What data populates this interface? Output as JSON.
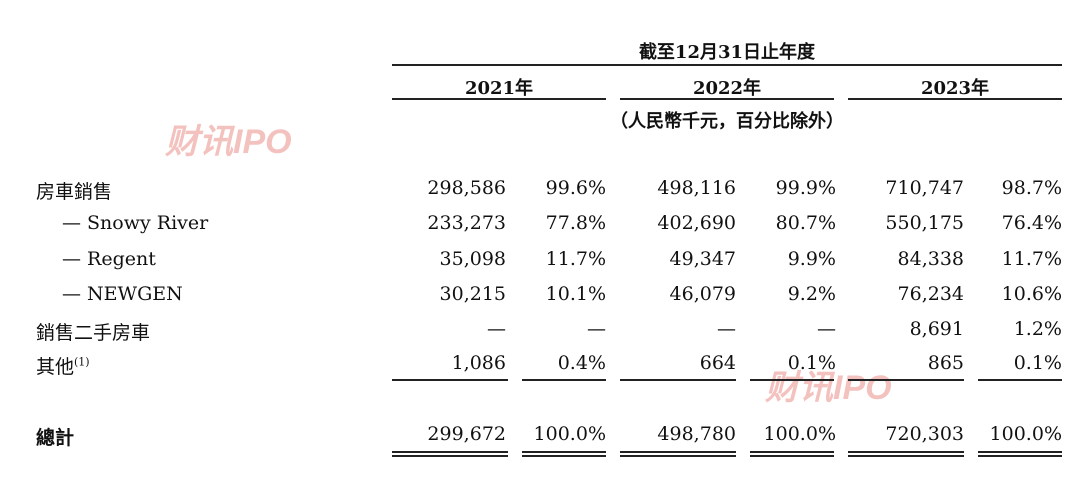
{
  "header": {
    "period_title": "截至12月31日止年度",
    "unit_note": "（人民幣千元，百分比除外）",
    "years": [
      "2021年",
      "2022年",
      "2023年"
    ]
  },
  "watermark": {
    "text": "财讯IPO"
  },
  "rows": [
    {
      "label": "房車銷售",
      "values": [
        "298,586",
        "99.6%",
        "498,116",
        "99.9%",
        "710,747",
        "98.7%"
      ]
    },
    {
      "label": "— Snowy River",
      "values": [
        "233,273",
        "77.8%",
        "402,690",
        "80.7%",
        "550,175",
        "76.4%"
      ]
    },
    {
      "label": "— Regent",
      "values": [
        "35,098",
        "11.7%",
        "49,347",
        "9.9%",
        "84,338",
        "11.7%"
      ]
    },
    {
      "label": "— NEWGEN",
      "values": [
        "30,215",
        "10.1%",
        "46,079",
        "9.2%",
        "76,234",
        "10.6%"
      ]
    },
    {
      "label": "銷售二手房車",
      "values": [
        "—",
        "—",
        "—",
        "—",
        "8,691",
        "1.2%"
      ]
    },
    {
      "label": "其他",
      "footnote": "(1)",
      "values": [
        "1,086",
        "0.4%",
        "664",
        "0.1%",
        "865",
        "0.1%"
      ]
    }
  ],
  "total": {
    "label": "總計",
    "values": [
      "299,672",
      "100.0%",
      "498,780",
      "100.0%",
      "720,303",
      "100.0%"
    ]
  }
}
